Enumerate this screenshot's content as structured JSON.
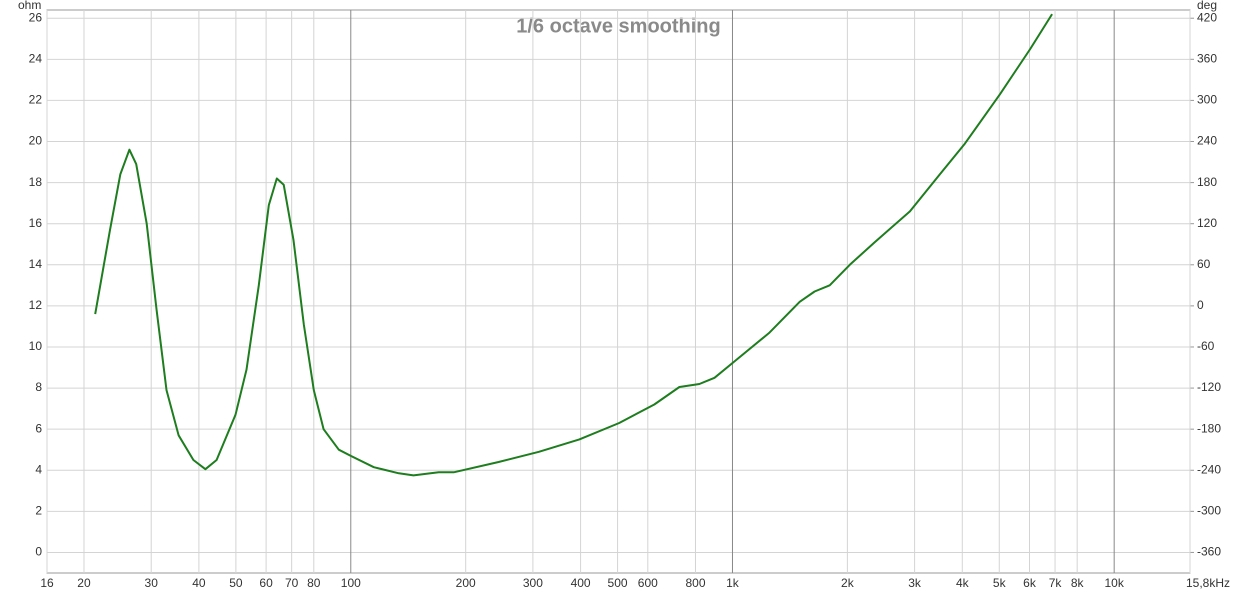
{
  "chart_data": {
    "type": "line",
    "title": "1/6 octave smoothing",
    "ylabel": "ohm",
    "y2label": "deg",
    "xscale": "log",
    "grid": true,
    "color": "#1e7d1e",
    "xlim": [
      16,
      15800
    ],
    "xticks": [
      16,
      20,
      30,
      40,
      50,
      60,
      70,
      80,
      100,
      200,
      300,
      400,
      500,
      600,
      800,
      {
        "value": 1000,
        "label": "1k"
      },
      {
        "value": 2000,
        "label": "2k"
      },
      {
        "value": 3000,
        "label": "3k"
      },
      {
        "value": 4000,
        "label": "4k"
      },
      {
        "value": 5000,
        "label": "5k"
      },
      {
        "value": 6000,
        "label": "6k"
      },
      {
        "value": 7000,
        "label": "7k"
      },
      {
        "value": 8000,
        "label": "8k"
      },
      {
        "value": 10000,
        "label": "10k"
      },
      {
        "value": 15800,
        "label": "15,8kHz"
      }
    ],
    "ylim": [
      -1,
      26.4
    ],
    "yticks": [
      0,
      2,
      4,
      6,
      8,
      10,
      12,
      14,
      16,
      18,
      20,
      22,
      24,
      26
    ],
    "y2lim": [
      -390,
      432
    ],
    "y2ticks": [
      -360,
      -300,
      -240,
      -180,
      -120,
      -60,
      0,
      60,
      120,
      180,
      240,
      300,
      360,
      420
    ],
    "x": [
      21.4,
      23.4,
      24.9,
      26.3,
      27.4,
      29.2,
      31.0,
      32.9,
      35.4,
      38.7,
      41.6,
      44.5,
      49.9,
      53.3,
      57.4,
      61.0,
      64.0,
      66.7,
      70.8,
      75.3,
      80.0,
      84.9,
      93.0,
      100,
      114.9,
      133.6,
      146,
      170,
      186,
      244,
      311,
      397,
      505,
      624,
      726,
      819,
      897,
      1012,
      1250,
      1500,
      1641,
      1798,
      2029,
      2359,
      2917,
      3493,
      4064,
      5023,
      6026,
      6878
    ],
    "values": [
      11.6,
      15.7,
      18.4,
      19.6,
      18.9,
      16.0,
      11.8,
      7.9,
      5.7,
      4.5,
      4.05,
      4.5,
      6.7,
      8.9,
      13.0,
      16.9,
      18.2,
      17.9,
      15.2,
      11.1,
      7.9,
      6.0,
      5.0,
      4.7,
      4.15,
      3.85,
      3.75,
      3.9,
      3.9,
      4.4,
      4.9,
      5.5,
      6.3,
      7.2,
      8.05,
      8.2,
      8.5,
      9.3,
      10.7,
      12.2,
      12.7,
      13.0,
      14.0,
      15.1,
      16.6,
      18.4,
      19.9,
      22.3,
      24.5,
      26.2
    ]
  }
}
